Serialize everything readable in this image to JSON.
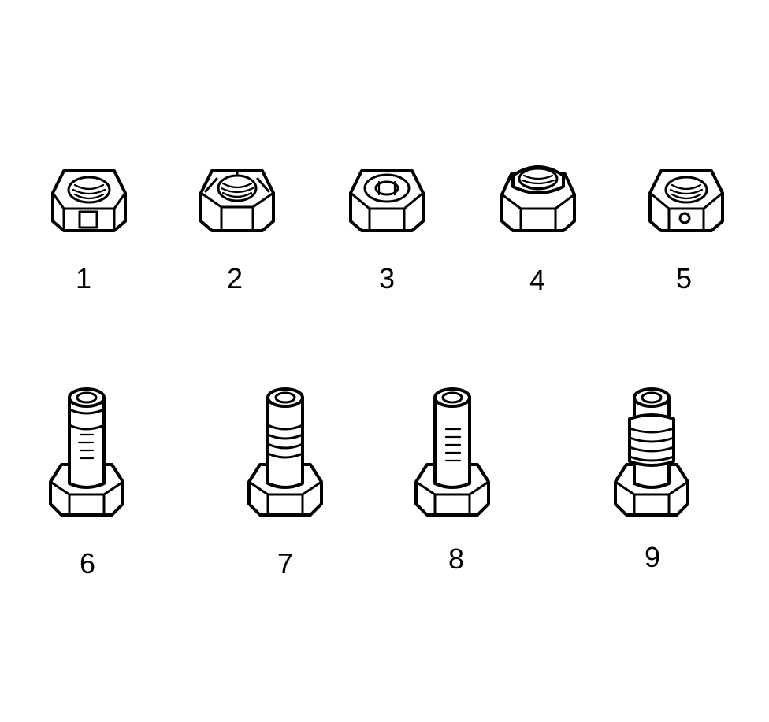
{
  "figure": {
    "nuts": [
      {
        "id": "nut-1",
        "label": "1",
        "marking": "square-window"
      },
      {
        "id": "nut-2",
        "label": "2",
        "marking": "crimped-top"
      },
      {
        "id": "nut-3",
        "label": "3",
        "marking": "nylon-insert"
      },
      {
        "id": "nut-4",
        "label": "4",
        "marking": "collar"
      },
      {
        "id": "nut-5",
        "label": "5",
        "marking": "round-hole"
      }
    ],
    "bolts": [
      {
        "id": "bolt-6",
        "label": "6",
        "marking": "short-patch"
      },
      {
        "id": "bolt-7",
        "label": "7",
        "marking": "band-patch"
      },
      {
        "id": "bolt-8",
        "label": "8",
        "marking": "long-patch"
      },
      {
        "id": "bolt-9",
        "label": "9",
        "marking": "deformed-threads"
      }
    ]
  }
}
